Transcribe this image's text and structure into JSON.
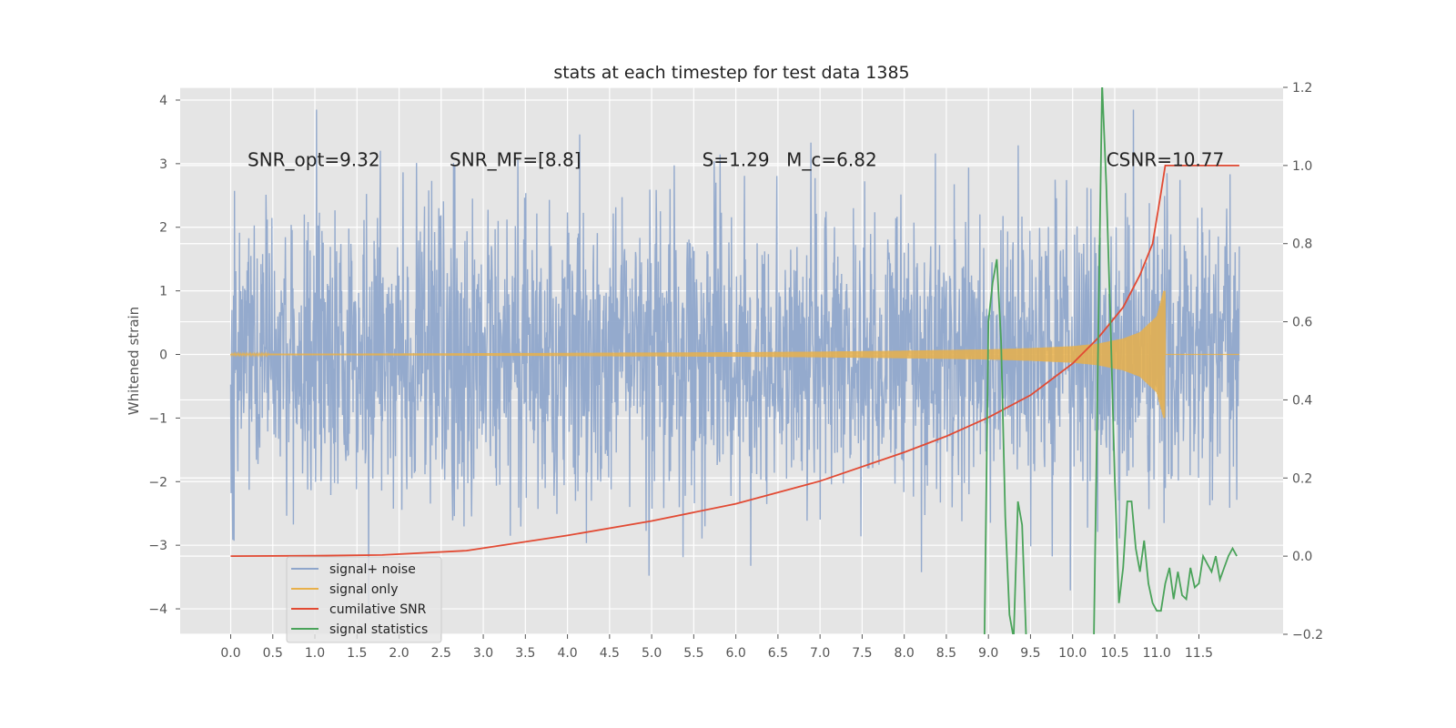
{
  "chart_data": {
    "type": "line",
    "title": "stats at each timestep for test data 1385",
    "xlabel": "",
    "ylabel": "Whitened strain",
    "ylabel_right": "",
    "xlim": [
      -0.6,
      12.5
    ],
    "ylim": [
      -4.4,
      4.2
    ],
    "ylim_right": [
      -0.2,
      1.2
    ],
    "grid": true,
    "background": "#e5e5e5",
    "x_ticks": [
      0.0,
      0.5,
      1.0,
      1.5,
      2.0,
      2.5,
      3.0,
      3.5,
      4.0,
      4.5,
      5.0,
      5.5,
      6.0,
      6.5,
      7.0,
      7.5,
      8.0,
      8.5,
      9.0,
      9.5,
      10.0,
      10.5,
      11.0,
      11.5
    ],
    "x_tick_labels": [
      "0.0",
      "0.5",
      "1.0",
      "1.5",
      "2.0",
      "2.5",
      "3.0",
      "3.5",
      "4.0",
      "4.5",
      "5.0",
      "5.5",
      "6.0",
      "6.5",
      "7.0",
      "7.5",
      "8.0",
      "8.5",
      "9.0",
      "9.5",
      "10.0",
      "10.5",
      "11.0",
      "11.5"
    ],
    "y_ticks": [
      -4,
      -3,
      -2,
      -1,
      0,
      1,
      2,
      3,
      4
    ],
    "y_tick_labels": [
      "−4",
      "−3",
      "−2",
      "−1",
      "0",
      "1",
      "2",
      "3",
      "4"
    ],
    "y_right_ticks": [
      -0.2,
      0.0,
      0.2,
      0.4,
      0.6,
      0.8,
      1.0,
      1.2
    ],
    "y_right_tick_labels": [
      "−0.2",
      "0.0",
      "0.2",
      "0.4",
      "0.6",
      "0.8",
      "1.0",
      "1.2"
    ],
    "annotations": [
      {
        "text": "SNR_opt=9.32",
        "x": 0.2,
        "y": 3.05
      },
      {
        "text": "SNR_MF=[8.8]",
        "x": 2.6,
        "y": 3.05
      },
      {
        "text": "S=1.29",
        "x": 5.6,
        "y": 3.05
      },
      {
        "text": "M_c=6.82",
        "x": 6.6,
        "y": 3.05
      },
      {
        "text": "CSNR=10.77",
        "x": 10.4,
        "y": 3.05
      }
    ],
    "legend": {
      "position": "lower-left",
      "entries": [
        "signal+ noise",
        "signal only",
        "cumilative SNR",
        "signal statistics"
      ]
    },
    "series": [
      {
        "name": "signal+ noise",
        "axis": "left",
        "color": "#8fa6cb",
        "x_range": [
          0.0,
          11.98
        ],
        "approx_envelope": [
          -4.1,
          3.85
        ]
      },
      {
        "name": "signal only",
        "axis": "left",
        "color": "#e8b04a",
        "envelope": {
          "x": [
            0.0,
            1.0,
            2.0,
            3.0,
            4.0,
            5.0,
            6.0,
            7.0,
            8.0,
            9.0,
            9.5,
            10.0,
            10.3,
            10.6,
            10.8,
            11.0,
            11.08,
            11.1,
            11.2,
            11.98
          ],
          "amplitude": [
            0.01,
            0.012,
            0.015,
            0.02,
            0.025,
            0.03,
            0.035,
            0.045,
            0.06,
            0.08,
            0.1,
            0.13,
            0.17,
            0.25,
            0.35,
            0.6,
            1.0,
            0.0,
            0.0,
            0.0
          ]
        }
      },
      {
        "name": "cumilative SNR",
        "axis": "right",
        "color": "#e24a33",
        "x": [
          0.0,
          1.0,
          1.8,
          2.8,
          4.0,
          5.0,
          6.0,
          7.0,
          8.0,
          8.5,
          9.0,
          9.5,
          10.0,
          10.3,
          10.6,
          10.8,
          10.95,
          11.05,
          11.1,
          11.5,
          11.98
        ],
        "values": [
          0.0,
          0.001,
          0.003,
          0.014,
          0.053,
          0.09,
          0.134,
          0.192,
          0.266,
          0.307,
          0.355,
          0.412,
          0.493,
          0.558,
          0.637,
          0.72,
          0.8,
          0.93,
          1.0,
          1.0,
          1.0
        ]
      },
      {
        "name": "signal statistics",
        "axis": "right",
        "color": "#4aa35a",
        "x": [
          8.95,
          9.0,
          9.05,
          9.1,
          9.15,
          9.2,
          9.25,
          9.3,
          9.35,
          9.4,
          9.45,
          9.5,
          10.25,
          10.3,
          10.35,
          10.4,
          10.45,
          10.5,
          10.55,
          10.6,
          10.65,
          10.7,
          10.75,
          10.8,
          10.85,
          10.9,
          10.95,
          11.0,
          11.05,
          11.1,
          11.15,
          11.2,
          11.25,
          11.3,
          11.35,
          11.4,
          11.45,
          11.5,
          11.55,
          11.6,
          11.65,
          11.7,
          11.75,
          11.8,
          11.85,
          11.9,
          11.95
        ],
        "values": [
          -0.25,
          0.6,
          0.7,
          0.76,
          0.55,
          0.1,
          -0.15,
          -0.21,
          0.14,
          0.08,
          -0.22,
          -0.25,
          -0.25,
          0.5,
          1.21,
          0.95,
          0.6,
          0.2,
          -0.12,
          -0.03,
          0.14,
          0.14,
          0.02,
          -0.04,
          0.04,
          -0.07,
          -0.12,
          -0.14,
          -0.14,
          -0.07,
          -0.03,
          -0.11,
          -0.04,
          -0.1,
          -0.11,
          -0.03,
          -0.08,
          -0.07,
          -0.0,
          -0.02,
          -0.04,
          0.0,
          -0.06,
          -0.03,
          0.0,
          0.02,
          0.0
        ]
      }
    ]
  }
}
